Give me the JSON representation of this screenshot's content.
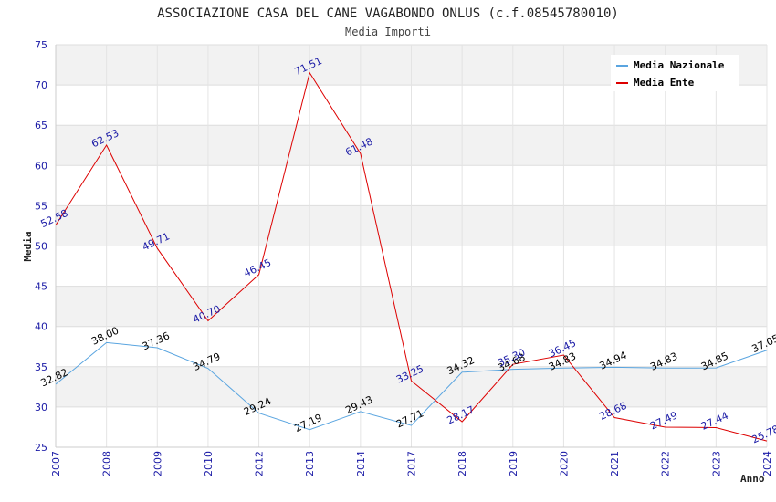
{
  "chart_data": {
    "type": "line",
    "title": "ASSOCIAZIONE CASA DEL CANE VAGABONDO ONLUS (c.f.08545780010)",
    "subtitle": "Media Importi",
    "xlabel": "Anno",
    "ylabel": "Media",
    "ylim": [
      25,
      75
    ],
    "yticks": [
      25,
      30,
      35,
      40,
      45,
      50,
      55,
      60,
      65,
      70,
      75
    ],
    "grid": true,
    "legend_position": "top-right",
    "categories": [
      "2007",
      "2008",
      "2009",
      "2010",
      "2012",
      "2013",
      "2014",
      "2017",
      "2018",
      "2019",
      "2020",
      "2021",
      "2022",
      "2023",
      "2024"
    ],
    "series": [
      {
        "name": "Media Nazionale",
        "color": "#5aa5e0",
        "values": [
          32.82,
          38.0,
          37.36,
          34.79,
          29.24,
          27.19,
          29.43,
          27.71,
          34.32,
          34.68,
          34.83,
          34.94,
          34.83,
          34.85,
          37.05
        ],
        "labels": [
          "32.82",
          "38.00",
          "37.36",
          "34.79",
          "29.24",
          "27.19",
          "29.43",
          "27.71",
          "34.32",
          "34.68",
          "34.83",
          "34.94",
          "34.83",
          "34.85",
          "37.05"
        ]
      },
      {
        "name": "Media Ente",
        "color": "#dd0000",
        "values": [
          52.58,
          62.53,
          49.71,
          40.7,
          46.45,
          71.51,
          61.48,
          33.25,
          28.17,
          35.3,
          36.45,
          28.68,
          27.49,
          27.44,
          25.78
        ],
        "labels": [
          "52.58",
          "62.53",
          "49.71",
          "40.70",
          "46.45",
          "71.51",
          "61.48",
          "33.25",
          "28.17",
          "35.30",
          "36.45",
          "28.68",
          "27.49",
          "27.44",
          "25.78"
        ]
      }
    ]
  }
}
